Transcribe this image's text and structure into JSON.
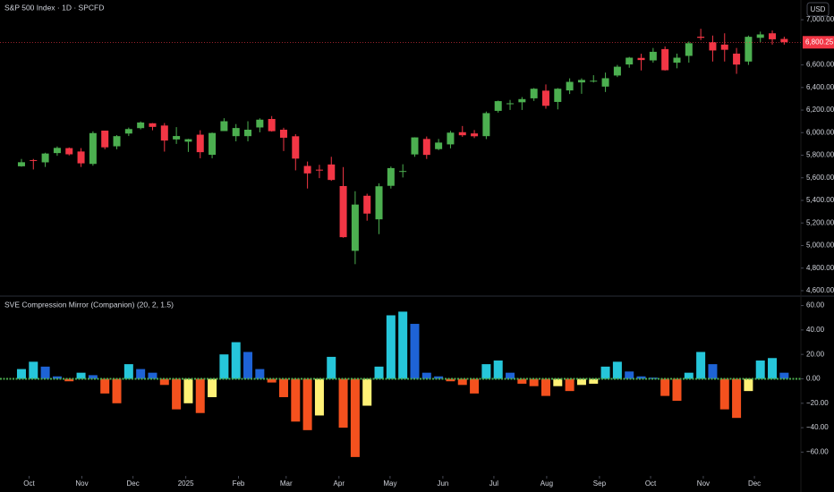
{
  "chart_data": [
    {
      "type": "candlestick",
      "title": "S&P 500 Index · 1D · SPCFD",
      "currency": "USD",
      "up_color": "#4caf50",
      "down_color": "#f23645",
      "last_price": {
        "value": 6800.25,
        "label": "6,800.25"
      },
      "xlim": [
        -1.3,
        65.9
      ],
      "ylim": [
        4560,
        7175
      ],
      "yticks": [
        {
          "value": 4600,
          "label": "4,600.00"
        },
        {
          "value": 4800,
          "label": "4,800.00"
        },
        {
          "value": 5000,
          "label": "5,000.00"
        },
        {
          "value": 5200,
          "label": "5,200.00"
        },
        {
          "value": 5400,
          "label": "5,400.00"
        },
        {
          "value": 5600,
          "label": "5,600.00"
        },
        {
          "value": 5800,
          "label": "5,800.00"
        },
        {
          "value": 6000,
          "label": "6,000.00"
        },
        {
          "value": 6200,
          "label": "6,200.00"
        },
        {
          "value": 6400,
          "label": "6,400.00"
        },
        {
          "value": 6600,
          "label": "6,600.00"
        },
        {
          "value": 7000,
          "label": "7,000.00"
        }
      ],
      "x": [
        0.5,
        1.5,
        2.5,
        3.5,
        4.5,
        5.5,
        6.5,
        7.5,
        8.5,
        9.5,
        10.5,
        11.5,
        12.5,
        13.5,
        14.5,
        15.5,
        16.5,
        17.5,
        18.5,
        19.5,
        20.5,
        21.5,
        22.5,
        23.5,
        24.5,
        25.5,
        26.5,
        27.5,
        28.5,
        29.5,
        30.5,
        31.5,
        32.5,
        33.5,
        34.5,
        35.5,
        36.5,
        37.5,
        38.5,
        39.5,
        40.5,
        41.5,
        42.5,
        43.5,
        44.5,
        45.5,
        46.5,
        47.5,
        48.5,
        49.5,
        50.5,
        51.5,
        52.5,
        53.5,
        54.5,
        55.5,
        56.5,
        57.5,
        58.5,
        59.5,
        60.5,
        61.5,
        62.5,
        63.5,
        64.5
      ],
      "open": [
        5702,
        5757,
        5737,
        5819,
        5863,
        5833,
        5723,
        6018,
        5879,
        5992,
        6040,
        6083,
        6063,
        5940,
        5920,
        5982,
        5804,
        6014,
        5969,
        5969,
        6046,
        6121,
        6026,
        5968,
        5705,
        5672,
        5718,
        5527,
        4953,
        5441,
        5232,
        5529,
        5655,
        5807,
        5944,
        5854,
        5896,
        6004,
        5993,
        5969,
        6193,
        6255,
        6269,
        6304,
        6372,
        6272,
        6374,
        6445,
        6457,
        6408,
        6506,
        6604,
        6662,
        6640,
        6740,
        6620,
        6680,
        6850,
        6800,
        6780,
        6700,
        6630,
        6840,
        6880,
        6830
      ],
      "high": [
        5767,
        5767,
        5822,
        5878,
        5869,
        5863,
        6012,
        6018,
        5978,
        6045,
        6099,
        6085,
        6085,
        6049,
        5945,
        6021,
        6001,
        6128,
        6076,
        6101,
        6127,
        6147,
        6043,
        5986,
        5744,
        5715,
        5786,
        5695,
        5481,
        5459,
        5551,
        5700,
        5720,
        5959,
        5966,
        5944,
        6016,
        6059,
        6023,
        6187,
        6284,
        6290,
        6315,
        6395,
        6427,
        6395,
        6481,
        6481,
        6509,
        6532,
        6600,
        6671,
        6699,
        6750,
        6764,
        6700,
        6807,
        6920,
        6860,
        6880,
        6750,
        6860,
        6895,
        6905,
        6850
      ],
      "low": [
        5698,
        5674,
        5696,
        5795,
        5798,
        5696,
        5707,
        5853,
        5853,
        5970,
        6029,
        6021,
        5832,
        5900,
        5829,
        5773,
        5773,
        6014,
        5923,
        5923,
        6003,
        6009,
        5837,
        5666,
        5505,
        5597,
        5573,
        5069,
        4835,
        5220,
        5101,
        5505,
        5603,
        5786,
        5767,
        5845,
        5861,
        5963,
        5952,
        5943,
        6177,
        6201,
        6201,
        6281,
        6212,
        6206,
        6342,
        6344,
        6444,
        6360,
        6492,
        6575,
        6551,
        6620,
        6550,
        6570,
        6620,
        6820,
        6630,
        6630,
        6521,
        6600,
        6800,
        6780,
        6780
      ],
      "close": [
        5738,
        5751,
        5815,
        5865,
        5808,
        5728,
        5996,
        5870,
        5969,
        6032,
        6090,
        6051,
        5930,
        5970,
        5942,
        5827,
        5997,
        6101,
        6041,
        6026,
        6115,
        6013,
        5955,
        5770,
        5639,
        5667,
        5581,
        5074,
        5363,
        5283,
        5525,
        5686,
        5660,
        5958,
        5803,
        5912,
        6000,
        5977,
        5968,
        6173,
        6279,
        6260,
        6297,
        6389,
        6238,
        6389,
        6450,
        6467,
        6460,
        6482,
        6584,
        6664,
        6643,
        6716,
        6553,
        6664,
        6792,
        6840,
        6728,
        6734,
        6603,
        6849,
        6870,
        6827,
        6800.25
      ]
    },
    {
      "type": "bar",
      "title": "SVE Compression Mirror (Companion) (20, 2, 1.5)",
      "xlim": [
        -1.3,
        65.9
      ],
      "ylim": [
        -78,
        67
      ],
      "yticks": [
        {
          "value": 60,
          "label": "60.00"
        },
        {
          "value": 40,
          "label": "40.00"
        },
        {
          "value": 20,
          "label": "20.00"
        },
        {
          "value": 0,
          "label": "0.00"
        },
        {
          "value": -20,
          "label": "−20.00"
        },
        {
          "value": -40,
          "label": "−40.00"
        },
        {
          "value": -60,
          "label": "−60.00"
        }
      ],
      "xticks": [
        {
          "value": 1.14,
          "label": "Oct"
        },
        {
          "value": 5.57,
          "label": "Nov"
        },
        {
          "value": 9.86,
          "label": "Dec"
        },
        {
          "value": 14.29,
          "label": "2025"
        },
        {
          "value": 18.71,
          "label": "Feb"
        },
        {
          "value": 22.71,
          "label": "Mar"
        },
        {
          "value": 27.14,
          "label": "Apr"
        },
        {
          "value": 31.43,
          "label": "May"
        },
        {
          "value": 35.86,
          "label": "Jun"
        },
        {
          "value": 40.14,
          "label": "Jul"
        },
        {
          "value": 44.57,
          "label": "Aug"
        },
        {
          "value": 49,
          "label": "Sep"
        },
        {
          "value": 53.29,
          "label": "Oct"
        },
        {
          "value": 57.71,
          "label": "Nov"
        },
        {
          "value": 62,
          "label": "Dec"
        }
      ],
      "zero_color": "#4caf50",
      "x": [
        0.5,
        1.5,
        2.5,
        3.5,
        4.5,
        5.5,
        6.5,
        7.5,
        8.5,
        9.5,
        10.5,
        11.5,
        12.5,
        13.5,
        14.5,
        15.5,
        16.5,
        17.5,
        18.5,
        19.5,
        20.5,
        21.5,
        22.5,
        23.5,
        24.5,
        25.5,
        26.5,
        27.5,
        28.5,
        29.5,
        30.5,
        31.5,
        32.5,
        33.5,
        34.5,
        35.5,
        36.5,
        37.5,
        38.5,
        39.5,
        40.5,
        41.5,
        42.5,
        43.5,
        44.5,
        45.5,
        46.5,
        47.5,
        48.5,
        49.5,
        50.5,
        51.5,
        52.5,
        53.5,
        54.5,
        55.5,
        56.5,
        57.5,
        58.5,
        59.5,
        60.5,
        61.5,
        62.5,
        63.5,
        64.5
      ],
      "values": [
        8,
        14,
        10,
        2,
        -2,
        5,
        3,
        -12,
        -20,
        12,
        8,
        5,
        -5,
        -25,
        -20,
        -28,
        -15,
        20,
        30,
        22,
        8,
        -3,
        -15,
        -35,
        -42,
        -30,
        18,
        -40,
        -64,
        -22,
        10,
        52,
        55,
        45,
        5,
        2,
        -2,
        -5,
        -12,
        12,
        15,
        5,
        -4,
        -6,
        -14,
        -6,
        -10,
        -5,
        -4,
        10,
        14,
        6,
        2,
        1,
        -14,
        -18,
        5,
        22,
        12,
        -25,
        -32,
        -10,
        15,
        17,
        5
      ],
      "colors": [
        "#26c6da",
        "#26c6da",
        "#1e63d6",
        "#1e63d6",
        "#f4511e",
        "#26c6da",
        "#1e63d6",
        "#f4511e",
        "#f4511e",
        "#26c6da",
        "#1e63d6",
        "#1e63d6",
        "#f4511e",
        "#f4511e",
        "#fff176",
        "#f4511e",
        "#fff176",
        "#26c6da",
        "#26c6da",
        "#1e63d6",
        "#1e63d6",
        "#f4511e",
        "#f4511e",
        "#f4511e",
        "#f4511e",
        "#fff176",
        "#26c6da",
        "#f4511e",
        "#f4511e",
        "#fff176",
        "#26c6da",
        "#26c6da",
        "#26c6da",
        "#1e63d6",
        "#1e63d6",
        "#1e63d6",
        "#f4511e",
        "#f4511e",
        "#f4511e",
        "#26c6da",
        "#26c6da",
        "#1e63d6",
        "#f4511e",
        "#f4511e",
        "#f4511e",
        "#fff176",
        "#f4511e",
        "#fff176",
        "#fff176",
        "#26c6da",
        "#26c6da",
        "#1e63d6",
        "#1e63d6",
        "#1e63d6",
        "#f4511e",
        "#f4511e",
        "#26c6da",
        "#26c6da",
        "#1e63d6",
        "#f4511e",
        "#f4511e",
        "#fff176",
        "#26c6da",
        "#26c6da",
        "#1e63d6"
      ]
    }
  ]
}
